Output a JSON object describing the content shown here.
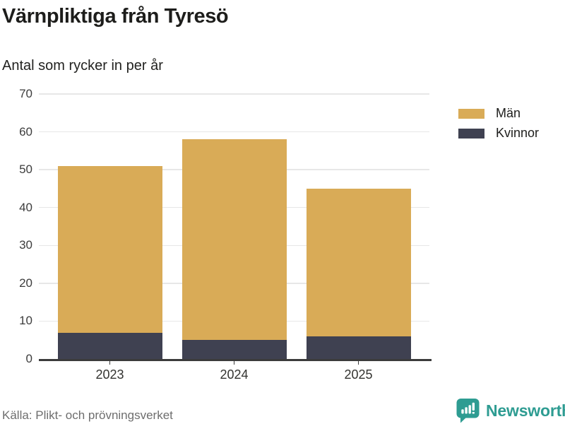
{
  "header": {
    "title": "Värnpliktiga från Tyresö",
    "subtitle": "Antal som rycker in per år"
  },
  "chart_data": {
    "type": "bar",
    "stacked": true,
    "title": "Värnpliktiga från Tyresö",
    "subtitle": "Antal som rycker in per år",
    "categories": [
      "2023",
      "2024",
      "2025"
    ],
    "series": [
      {
        "name": "Män",
        "color": "#d9ab57",
        "values": [
          44,
          53,
          39
        ]
      },
      {
        "name": "Kvinnor",
        "color": "#3f4151",
        "values": [
          7,
          5,
          6
        ]
      }
    ],
    "stack_totals": [
      51,
      58,
      45
    ],
    "xlabel": "",
    "ylabel": "",
    "ylim": [
      0,
      70
    ],
    "yticks": [
      0,
      10,
      20,
      30,
      40,
      50,
      60,
      70
    ],
    "grid": true,
    "legend_position": "right"
  },
  "footer": {
    "source": "Källa: Plikt- och prövningsverket",
    "brand": {
      "name": "Newsworthy",
      "icon": "newsworthy-chart-bubble-icon",
      "color": "#2e9c92"
    }
  },
  "colors": {
    "men": "#d9ab57",
    "women": "#3f4151",
    "gridline": "#e7e7e7",
    "axis": "#3b3b3b",
    "text": "#1d1d1b",
    "muted_text": "#6e6e6e",
    "brand_teal": "#2e9c92"
  }
}
